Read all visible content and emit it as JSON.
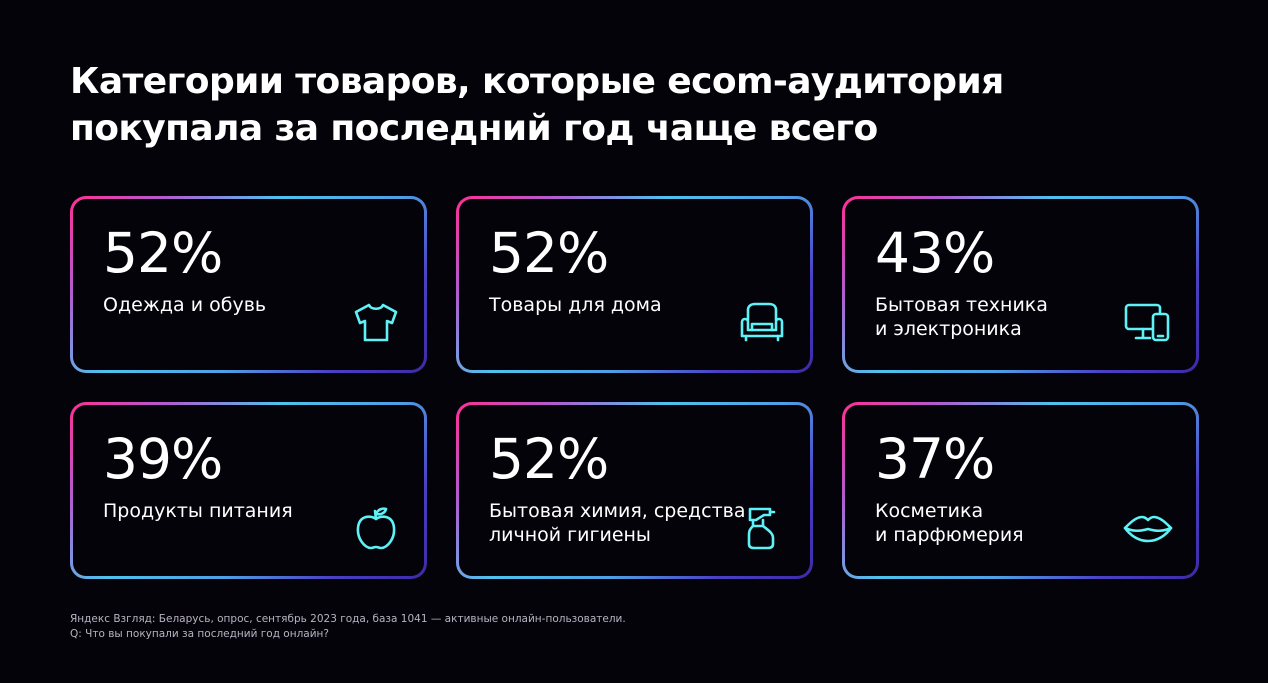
{
  "title": {
    "line1": "Категории товаров, которые ecom-аудитория",
    "line2": "покупала за последний год чаще всего"
  },
  "cards": [
    {
      "percent": "52%",
      "label_lines": [
        "Одежда и обувь"
      ],
      "value": 52,
      "icon": "t-shirt-icon"
    },
    {
      "percent": "52%",
      "label_lines": [
        "Товары для дома"
      ],
      "value": 52,
      "icon": "armchair-icon"
    },
    {
      "percent": "43%",
      "label_lines": [
        "Бытовая техника",
        "и электроника"
      ],
      "value": 43,
      "icon": "devices-icon"
    },
    {
      "percent": "39%",
      "label_lines": [
        "Продукты питания"
      ],
      "value": 39,
      "icon": "apple-icon"
    },
    {
      "percent": "52%",
      "label_lines": [
        "Бытовая химия, средства",
        "личной гигиены"
      ],
      "value": 52,
      "icon": "spray-bottle-icon"
    },
    {
      "percent": "37%",
      "label_lines": [
        "Косметика",
        "и парфюмерия"
      ],
      "value": 37,
      "icon": "lips-icon"
    }
  ],
  "footnote": {
    "line1": "Яндекс Взгляд: Беларусь, опрос, сентябрь 2023 года, база 1041 — активные онлайн-пользователи.",
    "line2": "Q: Что вы покупали за последний год онлайн?"
  },
  "colors": {
    "background": "#05030a",
    "icon_stroke": "#5ef2f6",
    "border_pink": "#ff2f93",
    "border_cyan": "#4dc3ee",
    "border_indigo": "#3d2aa8"
  }
}
